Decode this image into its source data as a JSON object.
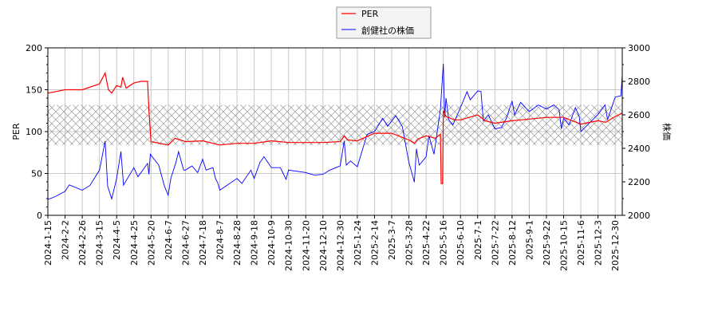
{
  "chart_data": {
    "type": "line",
    "title": "",
    "xlabel": "",
    "ylabel_left": "PER",
    "ylabel_right": "株価",
    "ylim_left": [
      0,
      200
    ],
    "ylim_right": [
      2000,
      3000
    ],
    "yticks_left": [
      0,
      50,
      100,
      150,
      200
    ],
    "yticks_right": [
      2000,
      2200,
      2400,
      2600,
      2800,
      3000
    ],
    "grid": true,
    "legend_position": "top-center",
    "shaded_band_per": [
      84,
      132
    ],
    "xtick_labels": [
      "2024-1-15",
      "2024-2-2",
      "2024-2-26",
      "2024-3-15",
      "2024-4-5",
      "2024-4-25",
      "2024-5-20",
      "2024-6-7",
      "2024-6-27",
      "2024-7-18",
      "2024-8-7",
      "2024-8-28",
      "2024-9-18",
      "2024-10-9",
      "2024-10-30",
      "2024-11-20",
      "2024-12-10",
      "2024-12-30",
      "2025-1-24",
      "2025-2-14",
      "2025-3-7",
      "2025-3-28",
      "2025-4-22",
      "2025-5-16",
      "2025-6-10",
      "2025-7-1",
      "2025-7-22",
      "2025-8-12",
      "2025-9-1",
      "2025-9-22",
      "2025-10-15",
      "2025-11-6",
      "2025-12-3",
      "2025-12-30"
    ],
    "series": [
      {
        "name": "PER",
        "axis": "left",
        "color": "#ff0000",
        "points": [
          [
            "2024-01-15",
            146
          ],
          [
            "2024-01-20",
            147
          ],
          [
            "2024-02-02",
            150
          ],
          [
            "2024-02-26",
            150
          ],
          [
            "2024-03-15",
            157
          ],
          [
            "2024-03-22",
            170
          ],
          [
            "2024-03-26",
            150
          ],
          [
            "2024-03-30",
            146
          ],
          [
            "2024-04-05",
            155
          ],
          [
            "2024-04-10",
            153
          ],
          [
            "2024-04-12",
            165
          ],
          [
            "2024-04-16",
            152
          ],
          [
            "2024-04-25",
            158
          ],
          [
            "2024-05-05",
            160
          ],
          [
            "2024-05-15",
            160
          ],
          [
            "2024-05-17",
            125
          ],
          [
            "2024-05-20",
            88
          ],
          [
            "2024-06-07",
            84
          ],
          [
            "2024-06-15",
            92
          ],
          [
            "2024-06-27",
            88
          ],
          [
            "2024-07-18",
            89
          ],
          [
            "2024-08-07",
            84
          ],
          [
            "2024-08-28",
            86
          ],
          [
            "2024-09-18",
            86
          ],
          [
            "2024-10-09",
            89
          ],
          [
            "2024-10-30",
            87
          ],
          [
            "2024-11-20",
            87
          ],
          [
            "2024-12-10",
            87
          ],
          [
            "2024-12-30",
            88
          ],
          [
            "2025-01-05",
            95
          ],
          [
            "2025-01-10",
            90
          ],
          [
            "2025-01-24",
            89
          ],
          [
            "2025-02-14",
            98
          ],
          [
            "2025-03-07",
            98
          ],
          [
            "2025-03-28",
            90
          ],
          [
            "2025-04-05",
            86
          ],
          [
            "2025-04-10",
            91
          ],
          [
            "2025-04-22",
            95
          ],
          [
            "2025-05-05",
            92
          ],
          [
            "2025-05-12",
            97
          ],
          [
            "2025-05-13",
            38
          ],
          [
            "2025-05-15",
            38
          ],
          [
            "2025-05-16",
            125
          ],
          [
            "2025-05-20",
            118
          ],
          [
            "2025-06-01",
            114
          ],
          [
            "2025-06-10",
            114
          ],
          [
            "2025-07-01",
            120
          ],
          [
            "2025-07-10",
            113
          ],
          [
            "2025-07-22",
            110
          ],
          [
            "2025-08-12",
            113
          ],
          [
            "2025-09-01",
            115
          ],
          [
            "2025-09-22",
            117
          ],
          [
            "2025-10-15",
            117
          ],
          [
            "2025-11-06",
            109
          ],
          [
            "2025-12-03",
            113
          ],
          [
            "2025-12-15",
            111
          ],
          [
            "2025-12-30",
            118
          ],
          [
            "2026-01-13",
            122
          ]
        ]
      },
      {
        "name": "創健社の株価",
        "axis": "right",
        "color": "#0000ff",
        "points": [
          [
            "2024-01-15",
            2095
          ],
          [
            "2024-01-22",
            2110
          ],
          [
            "2024-02-02",
            2143
          ],
          [
            "2024-02-08",
            2182
          ],
          [
            "2024-02-26",
            2150
          ],
          [
            "2024-03-05",
            2178
          ],
          [
            "2024-03-15",
            2270
          ],
          [
            "2024-03-22",
            2444
          ],
          [
            "2024-03-25",
            2175
          ],
          [
            "2024-03-30",
            2098
          ],
          [
            "2024-04-05",
            2220
          ],
          [
            "2024-04-10",
            2381
          ],
          [
            "2024-04-13",
            2180
          ],
          [
            "2024-04-25",
            2285
          ],
          [
            "2024-05-01",
            2230
          ],
          [
            "2024-05-15",
            2310
          ],
          [
            "2024-05-17",
            2245
          ],
          [
            "2024-05-19",
            2365
          ],
          [
            "2024-05-28",
            2300
          ],
          [
            "2024-06-03",
            2175
          ],
          [
            "2024-06-07",
            2120
          ],
          [
            "2024-06-10",
            2220
          ],
          [
            "2024-06-16",
            2315
          ],
          [
            "2024-06-19",
            2380
          ],
          [
            "2024-06-25",
            2270
          ],
          [
            "2024-06-27",
            2270
          ],
          [
            "2024-07-05",
            2295
          ],
          [
            "2024-07-12",
            2255
          ],
          [
            "2024-07-18",
            2335
          ],
          [
            "2024-07-22",
            2270
          ],
          [
            "2024-07-30",
            2285
          ],
          [
            "2024-08-02",
            2220
          ],
          [
            "2024-08-05",
            2190
          ],
          [
            "2024-08-07",
            2150
          ],
          [
            "2024-08-28",
            2220
          ],
          [
            "2024-09-03",
            2190
          ],
          [
            "2024-09-14",
            2270
          ],
          [
            "2024-09-18",
            2220
          ],
          [
            "2024-09-25",
            2315
          ],
          [
            "2024-09-30",
            2350
          ],
          [
            "2024-10-09",
            2285
          ],
          [
            "2024-10-20",
            2285
          ],
          [
            "2024-10-27",
            2215
          ],
          [
            "2024-10-30",
            2270
          ],
          [
            "2024-11-20",
            2255
          ],
          [
            "2024-11-30",
            2240
          ],
          [
            "2024-12-10",
            2245
          ],
          [
            "2024-12-18",
            2270
          ],
          [
            "2024-12-30",
            2295
          ],
          [
            "2025-01-05",
            2445
          ],
          [
            "2025-01-08",
            2300
          ],
          [
            "2025-01-14",
            2325
          ],
          [
            "2025-01-24",
            2290
          ],
          [
            "2025-02-05",
            2484
          ],
          [
            "2025-02-14",
            2500
          ],
          [
            "2025-02-24",
            2579
          ],
          [
            "2025-03-02",
            2532
          ],
          [
            "2025-03-12",
            2595
          ],
          [
            "2025-03-20",
            2530
          ],
          [
            "2025-03-28",
            2317
          ],
          [
            "2025-04-05",
            2198
          ],
          [
            "2025-04-08",
            2397
          ],
          [
            "2025-04-12",
            2300
          ],
          [
            "2025-04-22",
            2349
          ],
          [
            "2025-04-26",
            2476
          ],
          [
            "2025-05-03",
            2365
          ],
          [
            "2025-05-12",
            2635
          ],
          [
            "2025-05-16",
            2905
          ],
          [
            "2025-05-18",
            2587
          ],
          [
            "2025-05-20",
            2700
          ],
          [
            "2025-05-24",
            2570
          ],
          [
            "2025-05-30",
            2540
          ],
          [
            "2025-06-10",
            2643
          ],
          [
            "2025-06-18",
            2738
          ],
          [
            "2025-06-22",
            2690
          ],
          [
            "2025-07-01",
            2743
          ],
          [
            "2025-07-05",
            2740
          ],
          [
            "2025-07-08",
            2563
          ],
          [
            "2025-07-14",
            2600
          ],
          [
            "2025-07-22",
            2516
          ],
          [
            "2025-07-30",
            2525
          ],
          [
            "2025-08-05",
            2579
          ],
          [
            "2025-08-12",
            2683
          ],
          [
            "2025-08-15",
            2600
          ],
          [
            "2025-08-22",
            2675
          ],
          [
            "2025-09-01",
            2619
          ],
          [
            "2025-09-12",
            2659
          ],
          [
            "2025-09-22",
            2635
          ],
          [
            "2025-10-02",
            2659
          ],
          [
            "2025-10-09",
            2630
          ],
          [
            "2025-10-12",
            2516
          ],
          [
            "2025-10-15",
            2579
          ],
          [
            "2025-10-22",
            2540
          ],
          [
            "2025-10-30",
            2643
          ],
          [
            "2025-11-04",
            2590
          ],
          [
            "2025-11-06",
            2500
          ],
          [
            "2025-11-14",
            2530
          ],
          [
            "2025-12-03",
            2603
          ],
          [
            "2025-12-14",
            2659
          ],
          [
            "2025-12-18",
            2571
          ],
          [
            "2025-12-30",
            2706
          ],
          [
            "2026-01-08",
            2714
          ],
          [
            "2026-01-11",
            2841
          ],
          [
            "2026-01-13",
            2825
          ]
        ]
      }
    ]
  }
}
